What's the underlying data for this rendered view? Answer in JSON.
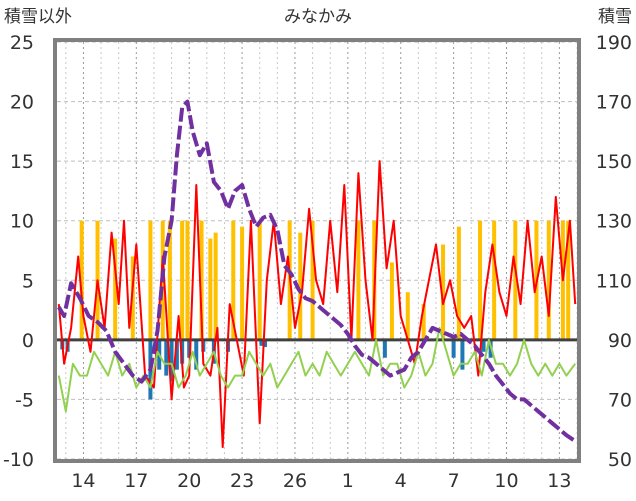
{
  "chart_data": {
    "type": "line",
    "title": "みなかみ",
    "ylabel_left": "積雪以外",
    "ylabel_right": "積雪",
    "x_ticks": [
      "14",
      "17",
      "20",
      "23",
      "26",
      "1",
      "4",
      "7",
      "10",
      "13"
    ],
    "x_range": [
      12.5,
      42.0
    ],
    "left_axis": {
      "ticks": [
        25,
        20,
        15,
        10,
        5,
        0,
        -5,
        -10
      ],
      "range": [
        -10,
        25
      ]
    },
    "right_axis": {
      "ticks": [
        190,
        170,
        150,
        130,
        110,
        90,
        70,
        50
      ],
      "range": [
        50,
        190
      ]
    },
    "series": [
      {
        "color": "#ffc000",
        "axis": "left",
        "kind": "bar",
        "x": [
          13.9,
          14.8,
          15.8,
          16.8,
          17.8,
          18.5,
          18.9,
          19.6,
          19.9,
          20.7,
          21.2,
          21.5,
          22.5,
          23.0,
          24.0,
          25.7,
          26.3,
          27.0,
          29.6,
          30.5,
          31.5,
          32.4,
          33.3,
          34.4,
          35.3,
          36.5,
          37.3,
          38.5,
          39.7,
          40.4,
          41.2,
          41.5
        ],
        "values": [
          10,
          10,
          8.5,
          7,
          10,
          10,
          10,
          10,
          10,
          10,
          8.5,
          9,
          10,
          9.5,
          10,
          10,
          9,
          10,
          10,
          10,
          6.5,
          4,
          3,
          8,
          9.5,
          10,
          10,
          10,
          10,
          10,
          10,
          10
        ]
      },
      {
        "color": "#1f77b4",
        "axis": "left",
        "kind": "bar",
        "x": [
          12.8,
          13.1,
          17.8,
          18.3,
          18.7,
          19.0,
          19.3,
          19.6,
          20.0,
          20.4,
          20.8,
          21.4,
          22.2,
          24.1,
          24.3,
          31.1,
          35.0,
          35.5,
          36.7,
          37.1
        ],
        "values": [
          -0.8,
          -1.0,
          -5.0,
          -2.5,
          -3.0,
          -3.5,
          -2.5,
          -2.0,
          -1.5,
          -2.5,
          -1.0,
          -2.0,
          -1.0,
          -0.5,
          -0.6,
          -1.5,
          -1.5,
          -2.5,
          -1.0,
          -1.5
        ]
      },
      {
        "color": "#ff0000",
        "axis": "left",
        "x": [
          12.6,
          12.9,
          13.3,
          13.7,
          14.0,
          14.4,
          14.8,
          15.2,
          15.6,
          16.0,
          16.3,
          16.6,
          17.0,
          17.5,
          18.0,
          18.5,
          19.0,
          19.4,
          19.7,
          20.0,
          20.4,
          20.8,
          21.2,
          21.6,
          21.9,
          22.3,
          22.7,
          23.1,
          23.5,
          24.0,
          24.4,
          24.8,
          25.2,
          25.6,
          26.0,
          26.4,
          26.8,
          27.2,
          27.6,
          28.0,
          28.4,
          28.8,
          29.2,
          29.6,
          30.0,
          30.4,
          30.8,
          31.2,
          31.6,
          32.0,
          32.4,
          32.8,
          33.2,
          33.6,
          34.0,
          34.4,
          34.8,
          35.2,
          35.6,
          36.0,
          36.4,
          36.8,
          37.2,
          37.6,
          38.0,
          38.4,
          38.8,
          39.2,
          39.6,
          40.0,
          40.4,
          40.8,
          41.2,
          41.6,
          41.9
        ],
        "values": [
          3,
          -2,
          1,
          7,
          2,
          -1,
          5,
          1,
          9,
          3,
          10,
          1,
          8,
          -3,
          -4,
          7,
          -5,
          2,
          -4,
          -3,
          13,
          -2,
          -3,
          1,
          -9,
          3,
          0,
          -3,
          10,
          -7,
          5,
          10,
          3,
          7,
          1,
          4,
          11,
          5,
          3,
          10,
          4,
          13,
          0,
          14,
          5,
          0,
          15,
          6,
          10,
          2,
          0,
          -2,
          2,
          5,
          8,
          3,
          5,
          2,
          1,
          2,
          -3,
          4,
          8,
          4,
          2,
          7,
          3,
          10,
          4,
          7,
          2,
          12,
          5,
          10,
          3
        ]
      },
      {
        "color": "#92d050",
        "axis": "left",
        "x": [
          12.6,
          13.0,
          13.4,
          13.8,
          14.2,
          14.6,
          15.0,
          15.4,
          15.8,
          16.2,
          16.6,
          17.0,
          17.4,
          17.8,
          18.2,
          18.6,
          19.0,
          19.4,
          19.8,
          20.2,
          20.6,
          21.0,
          21.4,
          21.8,
          22.2,
          22.6,
          23.0,
          23.4,
          23.8,
          24.2,
          24.6,
          25.0,
          25.4,
          25.8,
          26.2,
          26.6,
          27.0,
          27.4,
          27.8,
          28.2,
          28.6,
          29.0,
          29.4,
          29.8,
          30.2,
          30.6,
          31.0,
          31.4,
          31.8,
          32.2,
          32.6,
          33.0,
          33.4,
          33.8,
          34.2,
          34.6,
          35.0,
          35.4,
          35.8,
          36.2,
          36.6,
          37.0,
          37.4,
          37.8,
          38.2,
          38.6,
          39.0,
          39.4,
          39.8,
          40.2,
          40.6,
          41.0,
          41.4,
          41.9
        ],
        "values": [
          -3,
          -6,
          -2,
          -3,
          -3,
          -1,
          -2,
          -3,
          -1,
          -3,
          -2,
          -4,
          -3,
          -4,
          -1,
          -2,
          -2,
          -4,
          -3,
          -1,
          -3,
          -2,
          -1,
          -3,
          -4,
          -3,
          -3,
          -1,
          -2,
          -3,
          -2,
          -4,
          -3,
          -2,
          -1,
          -3,
          -2,
          -3,
          -1,
          -2,
          -3,
          -2,
          -1,
          -2,
          -3,
          0,
          -3,
          -2,
          -2,
          -4,
          -3,
          -1,
          -3,
          -2,
          1,
          -1,
          -3,
          -2,
          -2,
          -1,
          -3,
          0,
          -2,
          -2,
          -3,
          -2,
          0,
          -2,
          -3,
          -2,
          -3,
          -2,
          -3,
          -2
        ]
      },
      {
        "color": "#7030a0",
        "axis": "right",
        "x": [
          12.6,
          12.9,
          13.3,
          13.8,
          14.3,
          14.8,
          15.3,
          15.8,
          16.3,
          16.8,
          17.3,
          17.8,
          18.2,
          18.6,
          19.0,
          19.3,
          19.6,
          19.9,
          20.2,
          20.6,
          21.0,
          21.4,
          21.8,
          22.2,
          22.6,
          23.0,
          23.4,
          23.8,
          24.2,
          24.6,
          25.0,
          25.4,
          25.8,
          26.2,
          26.6,
          27.0,
          27.4,
          27.8,
          28.2,
          28.6,
          29.0,
          29.4,
          29.8,
          30.2,
          30.6,
          31.0,
          31.4,
          31.8,
          32.2,
          32.6,
          33.0,
          33.4,
          33.8,
          34.2,
          34.6,
          35.0,
          35.4,
          35.8,
          36.2,
          36.6,
          37.0,
          37.4,
          37.8,
          38.2,
          38.6,
          39.0,
          39.4,
          39.8,
          40.2,
          40.6,
          41.0,
          41.4,
          41.9
        ],
        "values": [
          101,
          98,
          109,
          104,
          98,
          96,
          93,
          86,
          82,
          78,
          76,
          80,
          93,
          118,
          130,
          152,
          168,
          170,
          160,
          152,
          156,
          143,
          140,
          134,
          140,
          142,
          134,
          128,
          131,
          132,
          127,
          115,
          112,
          107,
          104,
          103,
          101,
          99,
          97,
          95,
          92,
          88,
          85,
          84,
          82,
          80,
          78,
          79,
          80,
          84,
          86,
          90,
          94,
          93,
          92,
          91,
          92,
          90,
          88,
          85,
          82,
          78,
          75,
          72,
          70,
          70,
          68,
          66,
          64,
          62,
          60,
          58,
          56
        ]
      }
    ]
  }
}
